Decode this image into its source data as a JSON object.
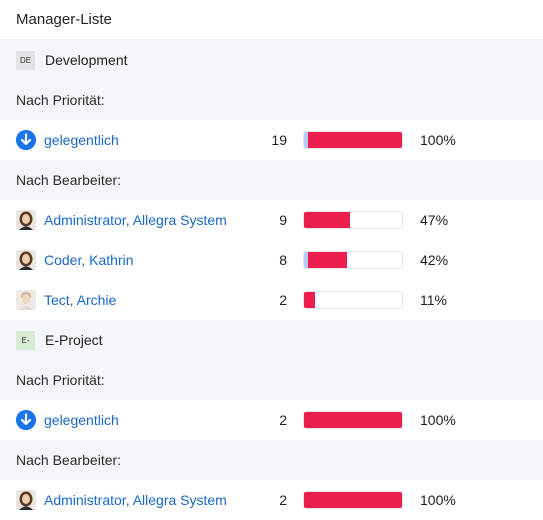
{
  "header": {
    "title": "Manager-Liste"
  },
  "colors": {
    "link": "#1769c9",
    "bar_fill": "#ea1f4b",
    "bar_accent": "#b9cdf4",
    "priority_icon": "#1a73e8"
  },
  "projects": [
    {
      "badge": "DE",
      "name": "Development",
      "priority_label": "Nach Priorität:",
      "priority_items": [
        {
          "icon": "arrow-down-circle-icon",
          "label": "gelegentlich",
          "count": "19",
          "percent_value": 100,
          "percent": "100%"
        }
      ],
      "assignee_label": "Nach Bearbeiter:",
      "assignee_items": [
        {
          "icon": "avatar-female-icon",
          "label": "Administrator, Allegra System",
          "count": "9",
          "percent_value": 47,
          "percent": "47%"
        },
        {
          "icon": "avatar-female-icon",
          "label": "Coder, Kathrin",
          "count": "8",
          "percent_value": 42,
          "percent": "42%"
        },
        {
          "icon": "avatar-male-icon",
          "label": "Tect, Archie",
          "count": "2",
          "percent_value": 11,
          "percent": "11%"
        }
      ]
    },
    {
      "badge": "E-",
      "name": "E-Project",
      "priority_label": "Nach Priorität:",
      "priority_items": [
        {
          "icon": "arrow-down-circle-icon",
          "label": "gelegentlich",
          "count": "2",
          "percent_value": 100,
          "percent": "100%"
        }
      ],
      "assignee_label": "Nach Bearbeiter:",
      "assignee_items": [
        {
          "icon": "avatar-female-icon",
          "label": "Administrator, Allegra System",
          "count": "2",
          "percent_value": 100,
          "percent": "100%"
        }
      ]
    }
  ]
}
